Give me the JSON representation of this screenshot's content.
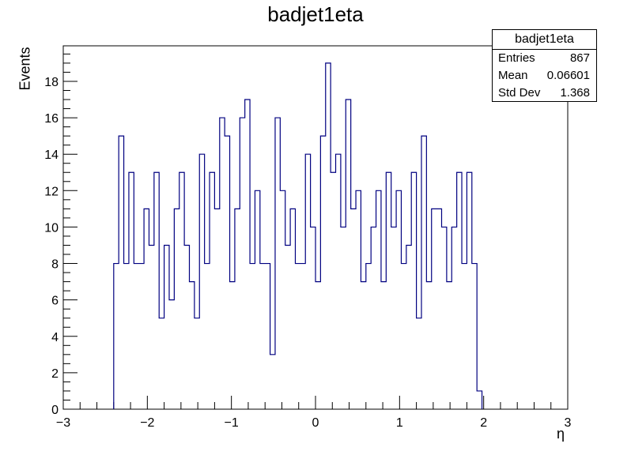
{
  "chart_data": {
    "type": "histogram",
    "title": "badjet1eta",
    "xlabel": "η",
    "ylabel": "Events",
    "xlim": [
      -3,
      3
    ],
    "ylim": [
      0,
      19.95
    ],
    "x_ticks": [
      -3,
      -2,
      -1,
      0,
      1,
      2,
      3
    ],
    "x_tick_labels": [
      "−3",
      "−2",
      "−1",
      "0",
      "1",
      "2",
      "3"
    ],
    "y_ticks": [
      0,
      2,
      4,
      6,
      8,
      10,
      12,
      14,
      16,
      18
    ],
    "y_tick_labels": [
      "0",
      "2",
      "4",
      "6",
      "8",
      "10",
      "12",
      "14",
      "16",
      "18"
    ],
    "bin_width": 0.06,
    "bins_start": -2.4,
    "values": [
      8,
      15,
      8,
      13,
      8,
      8,
      11,
      9,
      13,
      5,
      9,
      6,
      11,
      13,
      9,
      7,
      5,
      14,
      8,
      13,
      11,
      16,
      15,
      7,
      11,
      16,
      17,
      8,
      12,
      8,
      8,
      3,
      16,
      12,
      9,
      11,
      8,
      8,
      14,
      10,
      7,
      15,
      19,
      13,
      14,
      10,
      17,
      11,
      12,
      7,
      8,
      10,
      12,
      7,
      13,
      10,
      12,
      8,
      9,
      13,
      5,
      15,
      7,
      11,
      11,
      10,
      7,
      10,
      13,
      8,
      13,
      8,
      1
    ],
    "grid": false,
    "line_color": "#000080",
    "stats": {
      "title": "badjet1eta",
      "rows": [
        {
          "label": "Entries",
          "value": "867"
        },
        {
          "label": "Mean",
          "value": "0.06601"
        },
        {
          "label": "Std Dev",
          "value": "1.368"
        }
      ]
    }
  }
}
